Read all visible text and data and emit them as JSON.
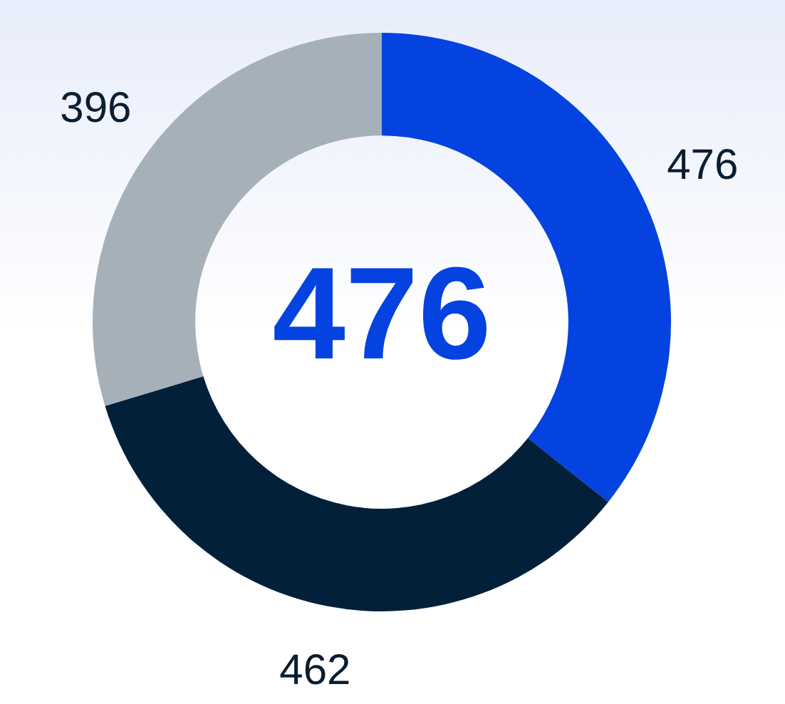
{
  "chart_data": {
    "type": "donut",
    "categories": [
      null,
      null,
      null
    ],
    "values": [
      476,
      462,
      396
    ],
    "colors": [
      "#0443e0",
      "#03203a",
      "#a6b0b9"
    ],
    "data_labels": true,
    "annotations": [
      "476"
    ]
  }
}
